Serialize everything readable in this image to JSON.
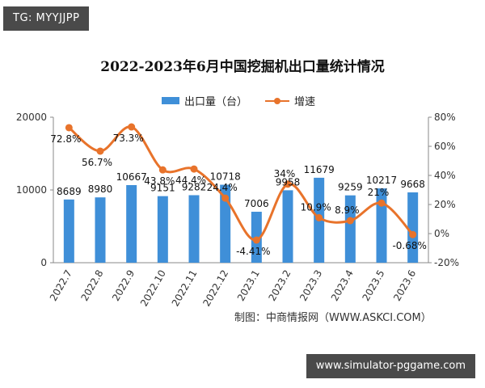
{
  "tag": "TG: MYYJJPP",
  "footer": "www.simulator-pggame.com",
  "source": "制图：中商情报网（WWW.ASKCI.COM）",
  "colors": {
    "bar": "#3f8fd8",
    "line": "#e8732b"
  },
  "chart_data": {
    "type": "bar",
    "title": "2022-2023年6月中国挖掘机出口量统计情况",
    "categories": [
      "2022.7",
      "2022.8",
      "2022.9",
      "2022.10",
      "2022.11",
      "2022.12",
      "2023.1",
      "2023.2",
      "2023.3",
      "2023.4",
      "2023.5",
      "2023.6"
    ],
    "series": [
      {
        "name": "出口量（台）",
        "type": "bar",
        "axis": "left",
        "values": [
          8689,
          8980,
          10667,
          9151,
          9282,
          10718,
          7006,
          9958,
          11679,
          9259,
          10217,
          9668
        ],
        "labels": [
          "8689",
          "8980",
          "10667",
          "9151",
          "9282",
          "10718",
          "7006",
          "9958",
          "11679",
          "9259",
          "10217",
          "9668"
        ]
      },
      {
        "name": "增速",
        "type": "line",
        "axis": "right",
        "values": [
          72.8,
          56.7,
          73.3,
          43.8,
          44.4,
          24.4,
          -4.41,
          34,
          10.9,
          8.9,
          21,
          -0.68
        ],
        "labels": [
          "72.8%",
          "56.7%",
          "73.3%",
          "43.8%",
          "44.4%",
          "24.4%",
          "-4.41%",
          "34%",
          "10.9%",
          "8.9%",
          "21%",
          "-0.68%"
        ]
      }
    ],
    "yleft": {
      "ylim": [
        0,
        20000
      ],
      "ticks": [
        "0",
        "10000",
        "20000"
      ]
    },
    "yright": {
      "ylim": [
        -20,
        80
      ],
      "ticks": [
        "-20%",
        "0%",
        "20%",
        "40%",
        "60%",
        "80%"
      ]
    },
    "legend_position": "top-center",
    "grid": false
  }
}
